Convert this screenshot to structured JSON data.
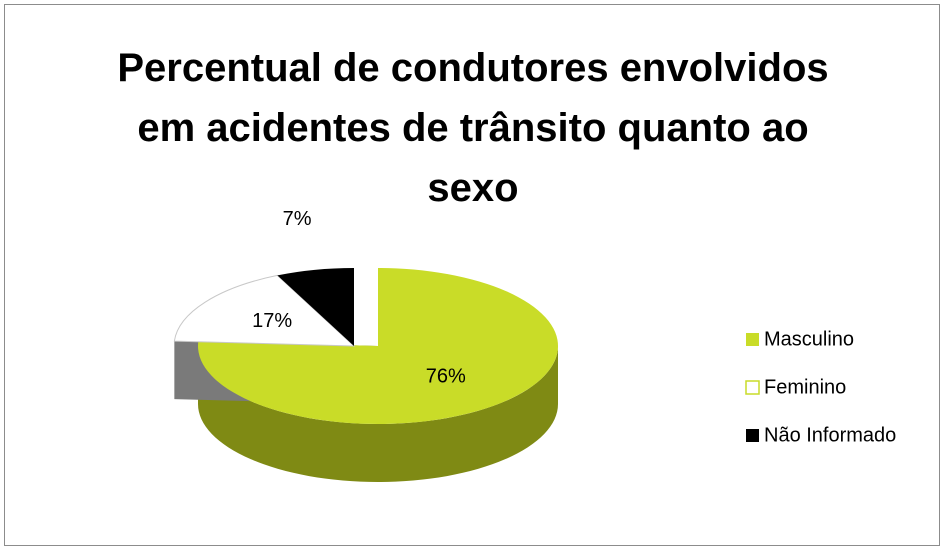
{
  "chart_data": {
    "type": "pie",
    "title": "Percentual de condutores envolvidos em acidentes de trânsito quanto ao sexo",
    "categories": [
      "Masculino",
      "Feminino",
      "Não Informado"
    ],
    "values": [
      76,
      17,
      7
    ],
    "value_labels": [
      "76%",
      "17%",
      "7%"
    ],
    "colors": [
      "#c9dc28",
      "#ffffff",
      "#000000"
    ],
    "legend": "right"
  }
}
